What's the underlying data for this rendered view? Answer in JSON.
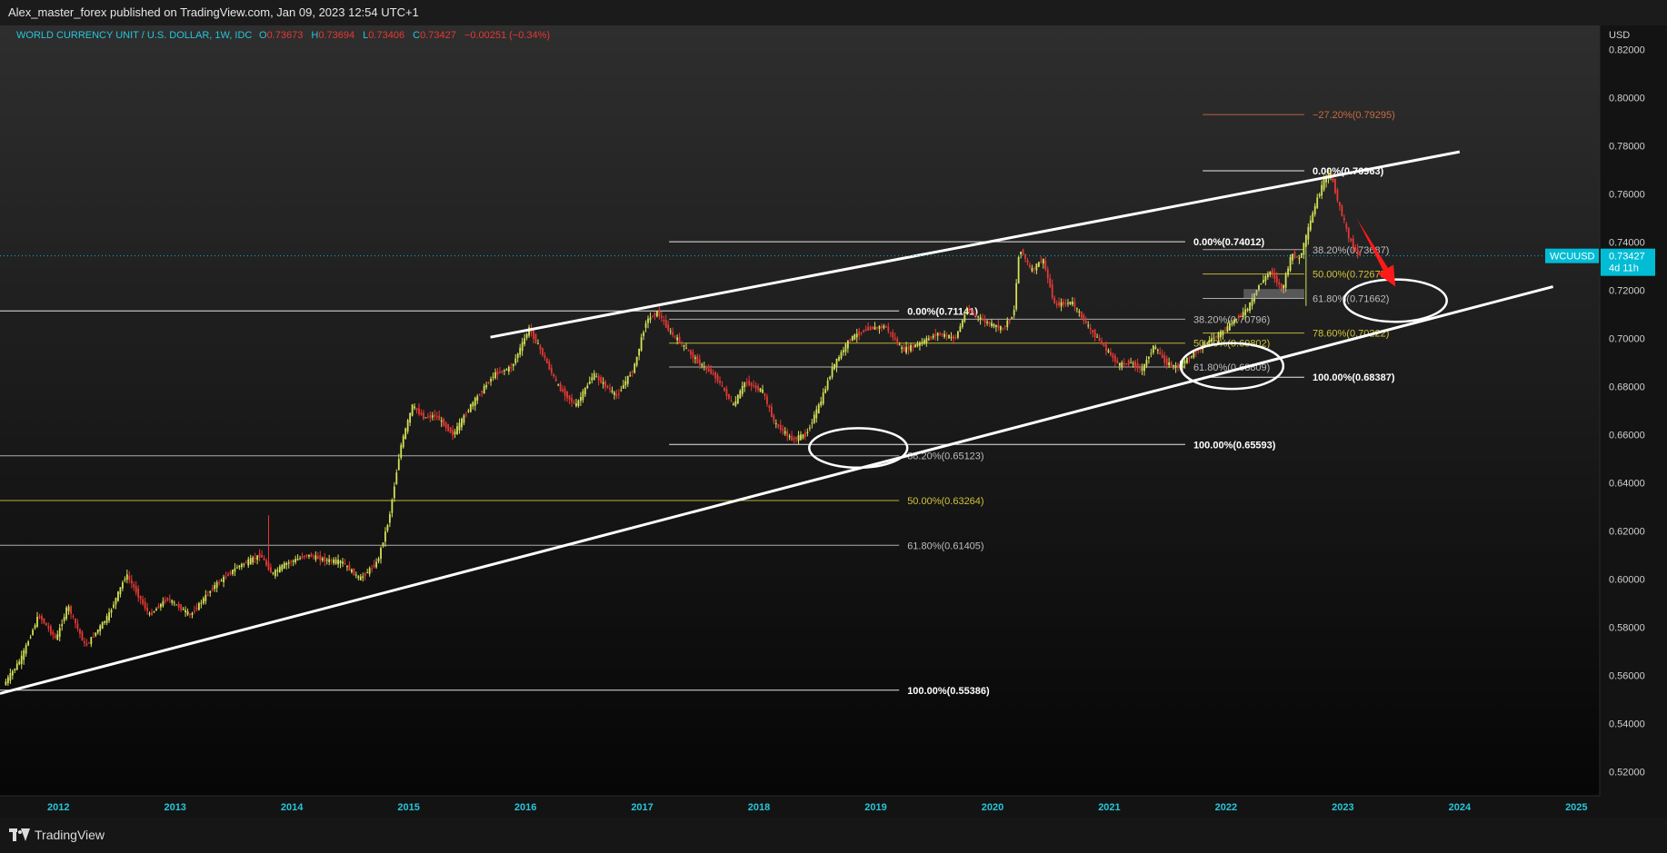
{
  "header": {
    "published_text": "Alex_master_forex published on TradingView.com, Jan 09, 2023 12:54 UTC+1"
  },
  "footer": {
    "brand": "TradingView"
  },
  "colors": {
    "background": "#131313",
    "bull": "#d4e157",
    "bear": "#e53935",
    "fib_white": "#ffffff",
    "fib_gray": "#bdbdbd",
    "fib_yellow": "#cfc33a",
    "fib_orange": "#c96a45",
    "price_tag": "#00bcd4",
    "legend_title": "#26c6da",
    "arrow": "#ff1a1a"
  },
  "chart_data": {
    "type": "candlestick",
    "legend": {
      "title": "WORLD CURRENCY UNIT / U.S. DOLLAR, 1W, IDC",
      "open": "0.73673",
      "high": "0.73694",
      "low": "0.73406",
      "close": "0.73427",
      "change": "−0.00251 (−0.34%)"
    },
    "currency": "USD",
    "ylim": [
      0.51,
      0.83
    ],
    "xlim": [
      2011.5,
      2025.2
    ],
    "y_ticks": [
      "0.82000",
      "0.80000",
      "0.78000",
      "0.76000",
      "0.74000",
      "0.72000",
      "0.70000",
      "0.68000",
      "0.66000",
      "0.64000",
      "0.62000",
      "0.60000",
      "0.58000",
      "0.56000",
      "0.54000",
      "0.52000"
    ],
    "x_ticks": [
      "2012",
      "2013",
      "2014",
      "2015",
      "2016",
      "2017",
      "2018",
      "2019",
      "2020",
      "2021",
      "2022",
      "2023",
      "2024",
      "2025"
    ],
    "last_price": {
      "symbol": "WCUUSD",
      "price": "0.73427",
      "countdown": "4d 11h",
      "value": 0.73427
    },
    "price_path": [
      [
        2011.55,
        0.556
      ],
      [
        2011.7,
        0.567
      ],
      [
        2011.85,
        0.585
      ],
      [
        2012.0,
        0.575
      ],
      [
        2012.1,
        0.589
      ],
      [
        2012.25,
        0.572
      ],
      [
        2012.45,
        0.585
      ],
      [
        2012.6,
        0.602
      ],
      [
        2012.8,
        0.585
      ],
      [
        2012.95,
        0.592
      ],
      [
        2013.15,
        0.585
      ],
      [
        2013.35,
        0.597
      ],
      [
        2013.55,
        0.605
      ],
      [
        2013.75,
        0.61
      ],
      [
        2013.85,
        0.602
      ],
      [
        2013.95,
        0.606
      ],
      [
        2014.15,
        0.61
      ],
      [
        2014.3,
        0.608
      ],
      [
        2014.45,
        0.607
      ],
      [
        2014.6,
        0.6
      ],
      [
        2014.75,
        0.607
      ],
      [
        2014.85,
        0.625
      ],
      [
        2014.95,
        0.655
      ],
      [
        2015.05,
        0.672
      ],
      [
        2015.15,
        0.667
      ],
      [
        2015.25,
        0.668
      ],
      [
        2015.4,
        0.66
      ],
      [
        2015.55,
        0.672
      ],
      [
        2015.75,
        0.685
      ],
      [
        2015.9,
        0.688
      ],
      [
        2016.05,
        0.704
      ],
      [
        2016.15,
        0.695
      ],
      [
        2016.3,
        0.68
      ],
      [
        2016.45,
        0.672
      ],
      [
        2016.6,
        0.685
      ],
      [
        2016.8,
        0.676
      ],
      [
        2016.95,
        0.688
      ],
      [
        2017.05,
        0.707
      ],
      [
        2017.15,
        0.711
      ],
      [
        2017.25,
        0.703
      ],
      [
        2017.35,
        0.698
      ],
      [
        2017.5,
        0.69
      ],
      [
        2017.65,
        0.684
      ],
      [
        2017.8,
        0.672
      ],
      [
        2017.9,
        0.682
      ],
      [
        2018.05,
        0.678
      ],
      [
        2018.15,
        0.665
      ],
      [
        2018.3,
        0.658
      ],
      [
        2018.42,
        0.66
      ],
      [
        2018.55,
        0.674
      ],
      [
        2018.65,
        0.688
      ],
      [
        2018.8,
        0.7
      ],
      [
        2018.95,
        0.704
      ],
      [
        2019.1,
        0.705
      ],
      [
        2019.25,
        0.695
      ],
      [
        2019.4,
        0.698
      ],
      [
        2019.55,
        0.702
      ],
      [
        2019.7,
        0.7
      ],
      [
        2019.8,
        0.712
      ],
      [
        2019.95,
        0.707
      ],
      [
        2020.1,
        0.704
      ],
      [
        2020.2,
        0.71
      ],
      [
        2020.25,
        0.738
      ],
      [
        2020.35,
        0.728
      ],
      [
        2020.45,
        0.733
      ],
      [
        2020.55,
        0.714
      ],
      [
        2020.7,
        0.715
      ],
      [
        2020.85,
        0.704
      ],
      [
        2021.0,
        0.695
      ],
      [
        2021.1,
        0.689
      ],
      [
        2021.2,
        0.69
      ],
      [
        2021.3,
        0.687
      ],
      [
        2021.4,
        0.697
      ],
      [
        2021.5,
        0.69
      ],
      [
        2021.6,
        0.688
      ],
      [
        2021.75,
        0.694
      ],
      [
        2021.9,
        0.7
      ],
      [
        2022.0,
        0.703
      ],
      [
        2022.1,
        0.708
      ],
      [
        2022.2,
        0.712
      ],
      [
        2022.3,
        0.722
      ],
      [
        2022.4,
        0.728
      ],
      [
        2022.5,
        0.72
      ],
      [
        2022.58,
        0.735
      ],
      [
        2022.65,
        0.733
      ],
      [
        2022.72,
        0.745
      ],
      [
        2022.8,
        0.758
      ],
      [
        2022.87,
        0.767
      ],
      [
        2022.92,
        0.768
      ],
      [
        2022.97,
        0.758
      ],
      [
        2023.02,
        0.75
      ],
      [
        2023.07,
        0.742
      ],
      [
        2023.12,
        0.737
      ],
      [
        2023.15,
        0.735
      ]
    ],
    "trendlines": [
      {
        "start": [
          2015.7,
          0.7005
        ],
        "end": [
          2024.0,
          0.7775
        ]
      },
      {
        "start": [
          2011.5,
          0.5525
        ],
        "end": [
          2024.8,
          0.7215
        ]
      }
    ],
    "fibonacci": [
      {
        "label": "0.00%(0.71141)",
        "value": 0.71141,
        "x1": 2011.5,
        "x2": 2019.2,
        "color": "white",
        "bold": true
      },
      {
        "label": "38.20%(0.65123)",
        "value": 0.65123,
        "x1": 2011.5,
        "x2": 2019.2,
        "color": "gray",
        "bold": false
      },
      {
        "label": "50.00%(0.63264)",
        "value": 0.63264,
        "x1": 2011.5,
        "x2": 2019.2,
        "color": "yellow",
        "bold": false
      },
      {
        "label": "61.80%(0.61405)",
        "value": 0.61405,
        "x1": 2011.5,
        "x2": 2019.2,
        "color": "gray",
        "bold": false
      },
      {
        "label": "100.00%(0.55386)",
        "value": 0.55386,
        "x1": 2011.5,
        "x2": 2019.2,
        "color": "white",
        "bold": true
      },
      {
        "label": "0.00%(0.74012)",
        "value": 0.74012,
        "x1": 2017.23,
        "x2": 2021.65,
        "color": "white",
        "bold": true
      },
      {
        "label": "38.20%(0.70796)",
        "value": 0.70796,
        "x1": 2017.23,
        "x2": 2021.65,
        "color": "gray",
        "bold": false
      },
      {
        "label": "50.00%(0.69802)",
        "value": 0.69802,
        "x1": 2017.23,
        "x2": 2021.65,
        "color": "yellow",
        "bold": false
      },
      {
        "label": "61.80%(0.68809)",
        "value": 0.68809,
        "x1": 2017.23,
        "x2": 2021.65,
        "color": "gray",
        "bold": false
      },
      {
        "label": "100.00%(0.65593)",
        "value": 0.65593,
        "x1": 2017.23,
        "x2": 2021.65,
        "color": "white",
        "bold": true
      },
      {
        "label": "−27.20%(0.79295)",
        "value": 0.79295,
        "x1": 2021.8,
        "x2": 2022.67,
        "color": "orange",
        "bold": false
      },
      {
        "label": "0.00%(0.76963)",
        "value": 0.76963,
        "x1": 2021.8,
        "x2": 2022.67,
        "color": "white",
        "bold": true
      },
      {
        "label": "38.20%(0.73687)",
        "value": 0.73687,
        "x1": 2021.8,
        "x2": 2022.67,
        "color": "gray",
        "bold": false
      },
      {
        "label": "50.00%(0.72675)",
        "value": 0.72675,
        "x1": 2021.8,
        "x2": 2022.67,
        "color": "yellow",
        "bold": false
      },
      {
        "label": "61.80%(0.71662)",
        "value": 0.71662,
        "x1": 2021.8,
        "x2": 2022.67,
        "color": "gray",
        "bold": false
      },
      {
        "label": "78.60%(0.70222)",
        "value": 0.70222,
        "x1": 2021.8,
        "x2": 2022.67,
        "color": "yellow",
        "bold": false
      },
      {
        "label": "100.00%(0.68387)",
        "value": 0.68387,
        "x1": 2021.8,
        "x2": 2022.67,
        "color": "white",
        "bold": true
      }
    ],
    "ellipses": [
      {
        "center": [
          2018.85,
          0.6545
        ],
        "rx_years": 0.42,
        "ry_value": 0.0082
      },
      {
        "center": [
          2022.05,
          0.6885
        ],
        "rx_years": 0.44,
        "ry_value": 0.0095
      },
      {
        "center": [
          2023.45,
          0.7157
        ],
        "rx_years": 0.44,
        "ry_value": 0.0088
      }
    ],
    "zone": {
      "x": [
        2022.15,
        2022.67
      ],
      "y": [
        0.7165,
        0.7205
      ]
    },
    "arrow": {
      "start": [
        2023.12,
        0.7498
      ],
      "end": [
        2023.45,
        0.7215
      ]
    }
  }
}
